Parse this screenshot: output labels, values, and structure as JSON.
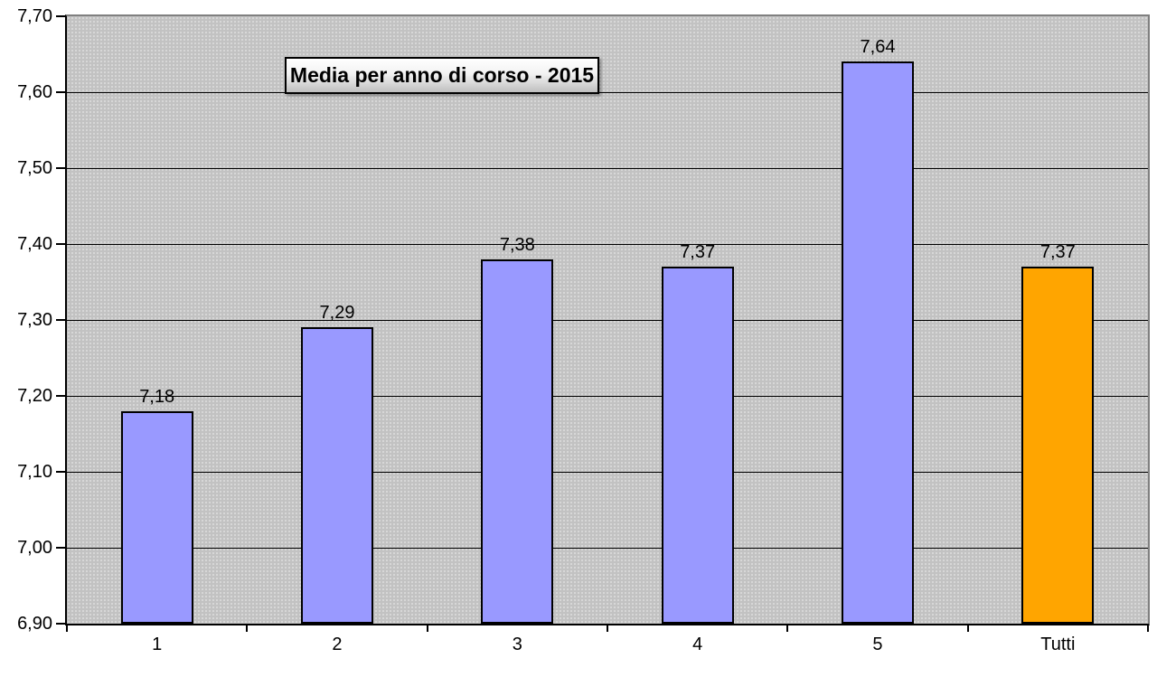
{
  "title": "Media per anno di corso - 2015",
  "colors": {
    "bar_default": "#9999FF",
    "bar_highlight": "#FFA500",
    "bar_border": "#000000",
    "plot_background": "#C2C2C2",
    "gridline": "#000000",
    "page_background": "#FFFFFF",
    "text": "#000000"
  },
  "chart_data": {
    "type": "bar",
    "title": "Media per anno di corso - 2015",
    "categories": [
      "1",
      "2",
      "3",
      "4",
      "5",
      "Tutti"
    ],
    "values": [
      7.18,
      7.29,
      7.38,
      7.37,
      7.64,
      7.37
    ],
    "value_labels": [
      "7,18",
      "7,29",
      "7,38",
      "7,37",
      "7,64",
      "7,37"
    ],
    "highlight_index": 5,
    "highlight_category": "Tutti",
    "xlabel": "",
    "ylabel": "",
    "ylim": [
      6.9,
      7.7
    ],
    "y_tick_step": 0.1,
    "y_ticks": [
      {
        "value": 6.9,
        "label": "6,90"
      },
      {
        "value": 7.0,
        "label": "7,00"
      },
      {
        "value": 7.1,
        "label": "7,10"
      },
      {
        "value": 7.2,
        "label": "7,20"
      },
      {
        "value": 7.3,
        "label": "7,30"
      },
      {
        "value": 7.4,
        "label": "7,40"
      },
      {
        "value": 7.5,
        "label": "7,50"
      },
      {
        "value": 7.6,
        "label": "7,60"
      },
      {
        "value": 7.7,
        "label": "7,70"
      }
    ],
    "grid": true,
    "legend": false
  }
}
